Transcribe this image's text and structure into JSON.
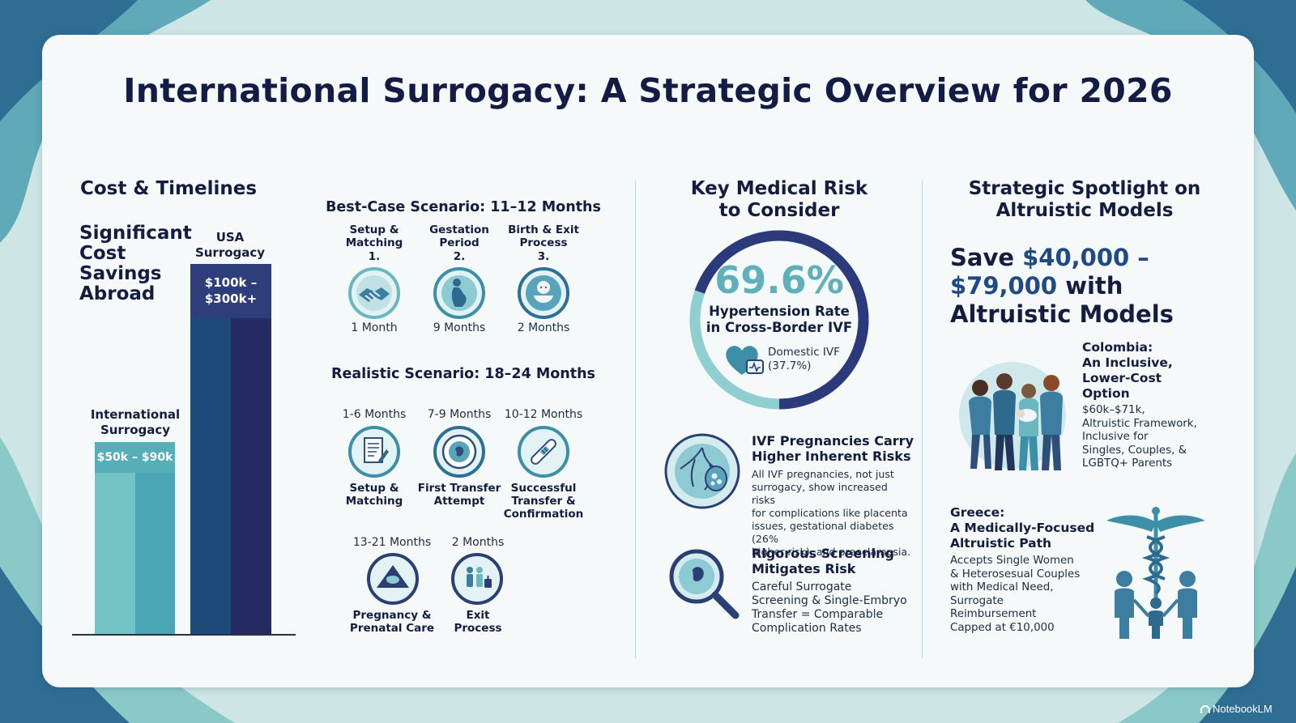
{
  "title": "International Surrogacy: A Strategic Overview for 2026",
  "colors": {
    "navy": "#1d2a5e",
    "teal": "#4aa3b3",
    "light_teal": "#8fcfcf",
    "dark_text": "#141c3f"
  },
  "cost": {
    "heading": "Cost & Timelines",
    "subheading_lines": [
      "Significant",
      "Cost",
      "Savings",
      "Abroad"
    ],
    "intl_label_lines": [
      "International",
      "Surrogacy"
    ],
    "intl_value": "$50k – $90k",
    "usa_label_lines": [
      "USA",
      "Surrogacy"
    ],
    "usa_value_lines": [
      "$100k –",
      "$300k+"
    ]
  },
  "best": {
    "heading": "Best-Case Scenario: 11–12 Months",
    "steps": [
      {
        "label_lines": [
          "Setup &",
          "Matching"
        ],
        "num": "1.",
        "duration": "1 Month",
        "icon": "handshake-icon"
      },
      {
        "label_lines": [
          "Gestation",
          "Period"
        ],
        "num": "2.",
        "duration": "9 Months",
        "icon": "pregnant-icon"
      },
      {
        "label_lines": [
          "Birth & Exit",
          "Process"
        ],
        "num": "3.",
        "duration": "2 Months",
        "icon": "baby-icon"
      }
    ]
  },
  "realistic": {
    "heading": "Realistic Scenario: 18–24 Months",
    "steps": [
      {
        "period": "1-6 Months",
        "label_lines": [
          "Setup &",
          "Matching"
        ],
        "icon": "document-icon"
      },
      {
        "period": "7-9 Months",
        "label_lines": [
          "First Transfer",
          "Attempt"
        ],
        "icon": "embryo-icon"
      },
      {
        "period": "10-12 Months",
        "label_lines": [
          "Successful",
          "Transfer &",
          "Confirmation"
        ],
        "icon": "pregnancy-test-icon"
      },
      {
        "period": "13-21 Months",
        "label_lines": [
          "Pregnancy &",
          "Prenatal Care"
        ],
        "icon": "ultrasound-icon"
      },
      {
        "period": "2 Months",
        "label_lines": [
          "Exit",
          "Process"
        ],
        "icon": "family-travel-icon"
      }
    ]
  },
  "medical": {
    "heading_lines": [
      "Key Medical Risk",
      "to Consider"
    ],
    "stat": "69.6%",
    "stat_fraction": 0.696,
    "stat_label_lines": [
      "Hypertension Rate",
      "in Cross-Border IVF"
    ],
    "domestic_lines": [
      "Domestic IVF",
      "(37.7%)"
    ],
    "ivf_heading_lines": [
      "IVF Pregnancies Carry",
      "Higher Inherent Risks"
    ],
    "ivf_body_lines": [
      "All IVF pregnancies, not just",
      "surrogacy, show increased risks",
      "for complications like placenta",
      "issues, gestational diabetes (26%",
      "higher risk), and preeclampsia."
    ],
    "screening_heading_lines": [
      "Rigorous Screening",
      "Mitigates Risk"
    ],
    "screening_body_lines": [
      "Careful Surrogate",
      "Screening & Single-Embryo",
      "Transfer = Comparable",
      "Complication Rates"
    ]
  },
  "altruistic": {
    "heading_lines": [
      "Strategic Spotlight on",
      "Altruistic Models"
    ],
    "save_prefix": "Save ",
    "save_range_1": "$40,000 –",
    "save_range_2": "$79,000",
    "save_suffix_1": " with",
    "save_line_3": "Altruistic Models",
    "colombia_heading_lines": [
      "Colombia:",
      "An Inclusive,",
      "Lower-Cost",
      "Option"
    ],
    "colombia_body_lines": [
      "$60k–$71k,",
      "Altruistic Framework,",
      "Inclusive for",
      "Singles, Couples, &",
      "LGBTQ+ Parents"
    ],
    "greece_heading_lines": [
      "Greece:",
      "A Medically-Focused",
      "Altruistic Path"
    ],
    "greece_body_lines": [
      "Accepts Single Women",
      "& Heterosesual Couples",
      "with Medical Need,",
      "Surrogate",
      "Reimbursement",
      "Capped at €10,000"
    ]
  },
  "brand": "NotebookLM"
}
